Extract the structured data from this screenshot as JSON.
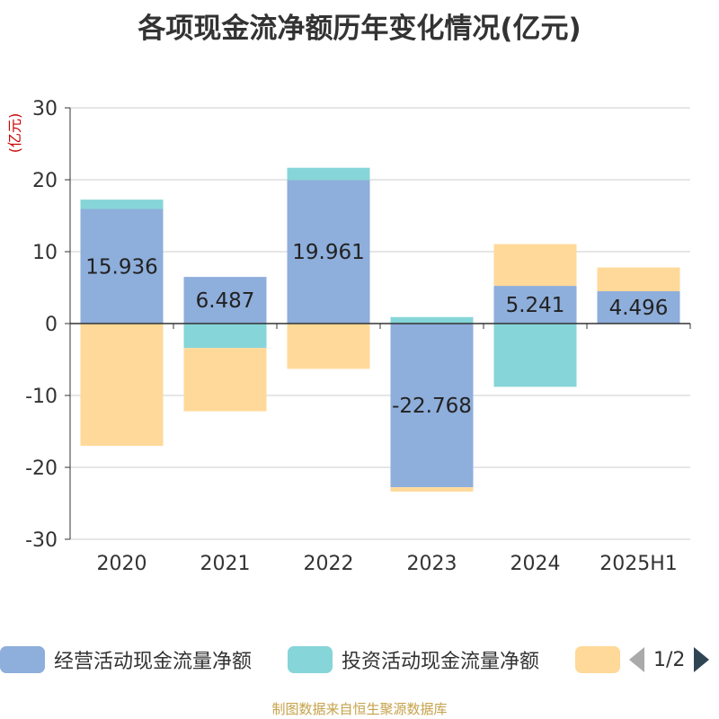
{
  "title": "各项现金流净额历年变化情况(亿元)",
  "source": "制图数据来自恒生聚源数据库",
  "pager": {
    "text": "1/2"
  },
  "chart_data": {
    "type": "bar",
    "stacked": true,
    "unit_label": "(亿元)",
    "categories": [
      "2020",
      "2021",
      "2022",
      "2023",
      "2024",
      "2025H1"
    ],
    "ylim": [
      -30,
      30
    ],
    "yticks": [
      30,
      20,
      10,
      0,
      -10,
      -20,
      -30
    ],
    "grid": true,
    "legend_position": "bottom",
    "series": [
      {
        "name": "经营活动现金流量净额",
        "color": "#8eaedb",
        "values": [
          15.936,
          6.487,
          19.961,
          -22.768,
          5.241,
          4.496
        ],
        "labels": [
          "15.936",
          "6.487",
          "19.961",
          "-22.768",
          "5.241",
          "4.496"
        ]
      },
      {
        "name": "投资活动现金流量净额",
        "color": "#86d5d8",
        "values": [
          1.3,
          -3.4,
          1.7,
          0.9,
          -8.8,
          0
        ]
      },
      {
        "name": "",
        "color": "#ffd999",
        "values": [
          -17.0,
          -8.8,
          -6.3,
          -0.6,
          5.8,
          3.3
        ]
      }
    ]
  }
}
